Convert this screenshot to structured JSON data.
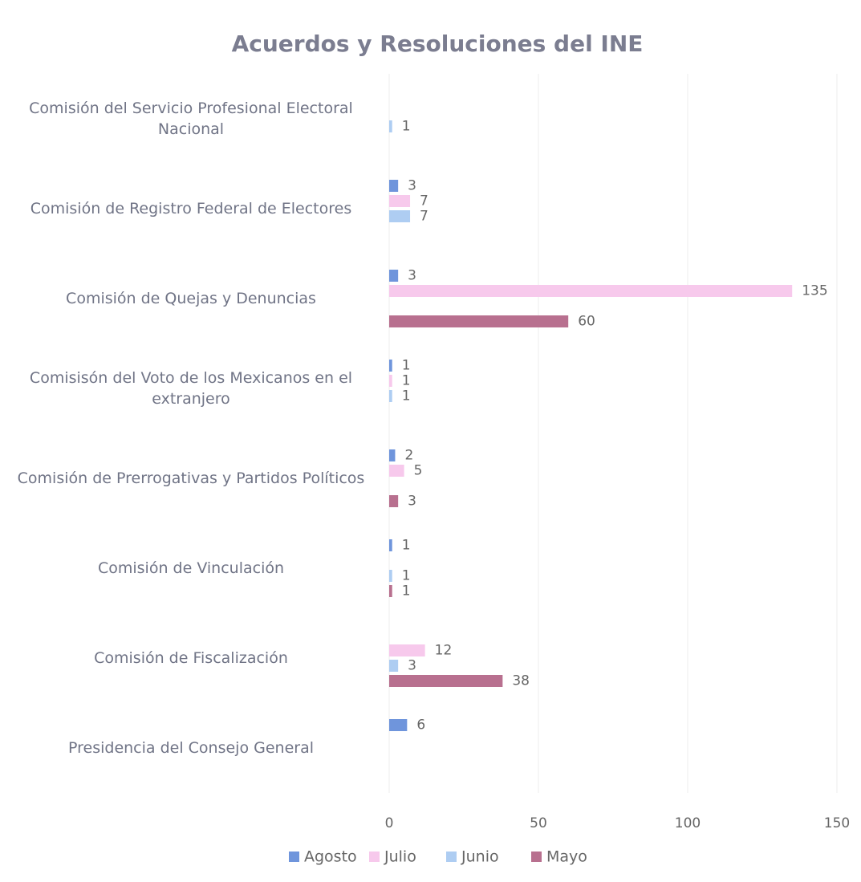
{
  "chart_data": {
    "type": "bar",
    "orientation": "horizontal",
    "title": "Acuerdos y Resoluciones del INE",
    "categories": [
      "Comisión del Servicio Profesional Electoral Nacional",
      "Comisión de Registro Federal de Electores",
      "Comisión de Quejas y Denuncias",
      "Comisisón del Voto de los Mexicanos en el extranjero",
      "Comisión de Prerrogativas y Partidos Políticos",
      "Comisión de Vinculación",
      "Comisión de Fiscalización",
      "Presidencia del Consejo General"
    ],
    "series": [
      {
        "name": "Agosto",
        "color": "#6f95dc",
        "values": [
          null,
          3,
          3,
          1,
          2,
          1,
          null,
          6
        ]
      },
      {
        "name": "Julio",
        "color": "#f7c9ec",
        "values": [
          null,
          7,
          135,
          1,
          5,
          null,
          12,
          null
        ]
      },
      {
        "name": "Junio",
        "color": "#aecdf2",
        "values": [
          1,
          7,
          null,
          1,
          null,
          1,
          3,
          null
        ]
      },
      {
        "name": "Mayo",
        "color": "#b8708f",
        "values": [
          null,
          null,
          60,
          null,
          3,
          1,
          38,
          null
        ]
      }
    ],
    "xlim": [
      0,
      150
    ],
    "xticks": [
      0,
      50,
      100,
      150
    ],
    "grid": true,
    "legend": "bottom"
  }
}
